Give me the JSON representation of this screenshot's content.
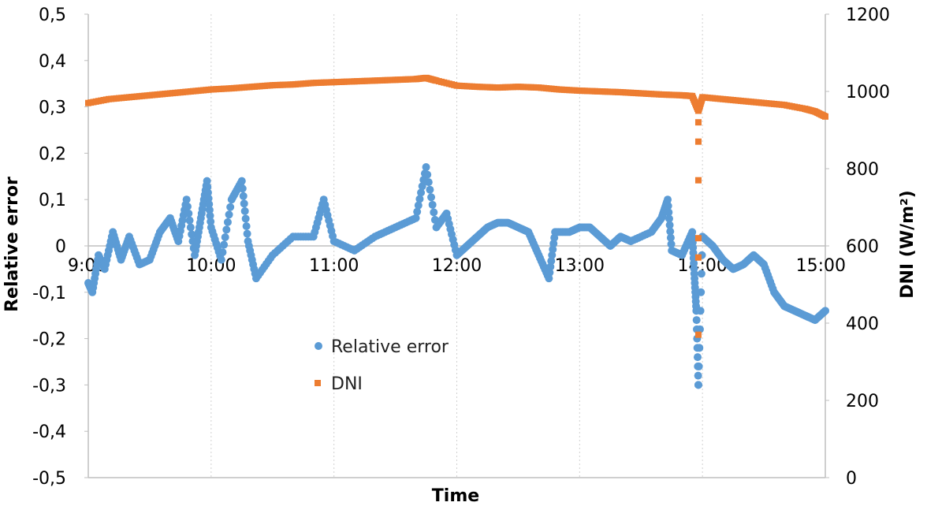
{
  "chart_data": {
    "type": "scatter",
    "title": "",
    "xlabel": "Time",
    "ylabel": "Relative error",
    "y2label": "DNI (W/m²)",
    "x_ticks": [
      "9:00",
      "10:00",
      "11:00",
      "12:00",
      "13:00",
      "14:00",
      "15:00"
    ],
    "xlim": [
      "9:00",
      "15:00"
    ],
    "ylim": [
      -0.5,
      0.5
    ],
    "y_ticks": [
      "-0,5",
      "-0,4",
      "-0,3",
      "-0,2",
      "-0,1",
      "0",
      "0,1",
      "0,2",
      "0,3",
      "0,4",
      "0,5"
    ],
    "y2lim": [
      0,
      1200
    ],
    "y2_ticks": [
      "0",
      "200",
      "400",
      "600",
      "800",
      "1000",
      "1200"
    ],
    "grid": "vertical",
    "legend_position": "center-left",
    "series": [
      {
        "name": "Relative error",
        "axis": "left",
        "color": "#5b9bd5",
        "marker": "circle",
        "points": [
          [
            "9:00",
            -0.08
          ],
          [
            "9:02",
            -0.1
          ],
          [
            "9:05",
            -0.02
          ],
          [
            "9:08",
            -0.05
          ],
          [
            "9:12",
            0.03
          ],
          [
            "9:16",
            -0.03
          ],
          [
            "9:20",
            0.02
          ],
          [
            "9:25",
            -0.04
          ],
          [
            "9:30",
            -0.03
          ],
          [
            "9:35",
            0.03
          ],
          [
            "9:40",
            0.06
          ],
          [
            "9:44",
            0.01
          ],
          [
            "9:48",
            0.1
          ],
          [
            "9:52",
            -0.02
          ],
          [
            "9:55",
            0.06
          ],
          [
            "9:58",
            0.14
          ],
          [
            "10:00",
            0.04
          ],
          [
            "10:05",
            -0.03
          ],
          [
            "10:10",
            0.1
          ],
          [
            "10:15",
            0.14
          ],
          [
            "10:18",
            0.01
          ],
          [
            "10:22",
            -0.07
          ],
          [
            "10:30",
            -0.02
          ],
          [
            "10:40",
            0.02
          ],
          [
            "10:50",
            0.02
          ],
          [
            "10:55",
            0.1
          ],
          [
            "11:00",
            0.01
          ],
          [
            "11:10",
            -0.01
          ],
          [
            "11:20",
            0.02
          ],
          [
            "11:30",
            0.04
          ],
          [
            "11:40",
            0.06
          ],
          [
            "11:45",
            0.17
          ],
          [
            "11:50",
            0.04
          ],
          [
            "11:55",
            0.07
          ],
          [
            "12:00",
            -0.02
          ],
          [
            "12:05",
            0.0
          ],
          [
            "12:10",
            0.02
          ],
          [
            "12:15",
            0.04
          ],
          [
            "12:20",
            0.05
          ],
          [
            "12:25",
            0.05
          ],
          [
            "12:30",
            0.04
          ],
          [
            "12:35",
            0.03
          ],
          [
            "12:40",
            -0.02
          ],
          [
            "12:45",
            -0.07
          ],
          [
            "12:48",
            0.03
          ],
          [
            "12:55",
            0.03
          ],
          [
            "13:00",
            0.04
          ],
          [
            "13:05",
            0.04
          ],
          [
            "13:10",
            0.02
          ],
          [
            "13:15",
            0.0
          ],
          [
            "13:20",
            0.02
          ],
          [
            "13:25",
            0.01
          ],
          [
            "13:35",
            0.03
          ],
          [
            "13:40",
            0.06
          ],
          [
            "13:43",
            0.1
          ],
          [
            "13:45",
            -0.01
          ],
          [
            "13:50",
            -0.02
          ],
          [
            "13:55",
            0.03
          ],
          [
            "13:56",
            -0.06
          ],
          [
            "13:57",
            -0.14
          ],
          [
            "13:58",
            -0.3
          ],
          [
            "14:00",
            0.02
          ],
          [
            "14:05",
            0.0
          ],
          [
            "14:10",
            -0.03
          ],
          [
            "14:15",
            -0.05
          ],
          [
            "14:20",
            -0.04
          ],
          [
            "14:25",
            -0.02
          ],
          [
            "14:30",
            -0.04
          ],
          [
            "14:35",
            -0.1
          ],
          [
            "14:40",
            -0.13
          ],
          [
            "14:45",
            -0.14
          ],
          [
            "14:50",
            -0.15
          ],
          [
            "14:55",
            -0.16
          ],
          [
            "15:00",
            -0.14
          ]
        ]
      },
      {
        "name": "DNI",
        "axis": "right",
        "color": "#ed7d31",
        "marker": "square",
        "points": [
          [
            "9:00",
            970
          ],
          [
            "9:10",
            980
          ],
          [
            "9:20",
            985
          ],
          [
            "9:30",
            990
          ],
          [
            "9:40",
            995
          ],
          [
            "9:50",
            1000
          ],
          [
            "10:00",
            1005
          ],
          [
            "10:10",
            1008
          ],
          [
            "10:20",
            1012
          ],
          [
            "10:30",
            1016
          ],
          [
            "10:40",
            1018
          ],
          [
            "10:50",
            1022
          ],
          [
            "11:00",
            1024
          ],
          [
            "11:10",
            1026
          ],
          [
            "11:20",
            1028
          ],
          [
            "11:30",
            1030
          ],
          [
            "11:40",
            1032
          ],
          [
            "11:45",
            1035
          ],
          [
            "11:50",
            1028
          ],
          [
            "12:00",
            1015
          ],
          [
            "12:10",
            1012
          ],
          [
            "12:20",
            1010
          ],
          [
            "12:30",
            1012
          ],
          [
            "12:40",
            1010
          ],
          [
            "12:50",
            1005
          ],
          [
            "13:00",
            1002
          ],
          [
            "13:10",
            1000
          ],
          [
            "13:20",
            998
          ],
          [
            "13:30",
            995
          ],
          [
            "13:40",
            992
          ],
          [
            "13:50",
            990
          ],
          [
            "13:55",
            988
          ],
          [
            "13:58",
            950
          ],
          [
            "13:58",
            920
          ],
          [
            "13:58",
            870
          ],
          [
            "13:58",
            770
          ],
          [
            "13:58",
            620
          ],
          [
            "13:58",
            570
          ],
          [
            "13:58",
            370
          ],
          [
            "14:00",
            985
          ],
          [
            "14:10",
            980
          ],
          [
            "14:20",
            975
          ],
          [
            "14:30",
            970
          ],
          [
            "14:40",
            965
          ],
          [
            "14:50",
            955
          ],
          [
            "14:55",
            948
          ],
          [
            "15:00",
            935
          ]
        ]
      }
    ]
  }
}
